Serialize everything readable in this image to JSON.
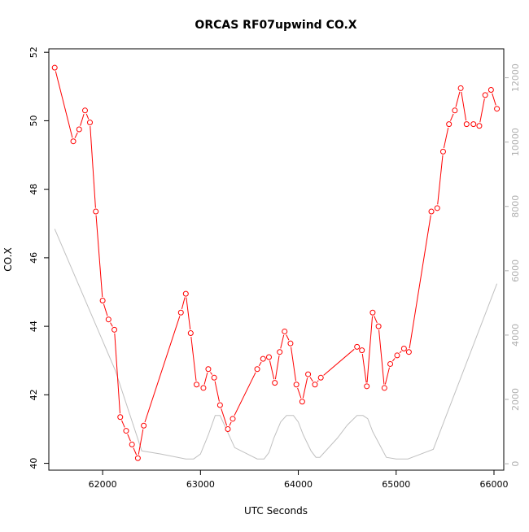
{
  "chart_data": {
    "type": "line",
    "title": "ORCAS RF07upwind CO.X",
    "xlabel": "UTC Seconds",
    "ylabel": "CO.X",
    "xlim": [
      61450,
      66100
    ],
    "ylim": [
      39.8,
      52.1
    ],
    "y2lim": [
      -200,
      12900
    ],
    "x_ticks": [
      62000,
      63000,
      64000,
      65000,
      66000
    ],
    "x_tick_labels": [
      "62000",
      "63000",
      "64000",
      "65000",
      "66000"
    ],
    "y_ticks": [
      40,
      42,
      44,
      46,
      48,
      50,
      52
    ],
    "y_tick_labels": [
      "40",
      "42",
      "44",
      "46",
      "48",
      "50",
      "52"
    ],
    "y2_ticks": [
      0,
      2000,
      4000,
      6000,
      8000,
      10000,
      12000
    ],
    "y2_tick_labels": [
      "0",
      "2000",
      "4000",
      "6000",
      "8000",
      "10000",
      "12000"
    ],
    "grid": false,
    "series": [
      {
        "color": "#ff0000",
        "axis": "left",
        "marker": "open-circle",
        "x": [
          61510,
          61700,
          61760,
          61820,
          61870,
          61930,
          62000,
          62060,
          62120,
          62180,
          62240,
          62300,
          62360,
          62420,
          62800,
          62850,
          62900,
          62960,
          63030,
          63080,
          63140,
          63200,
          63280,
          63330,
          63580,
          63640,
          63700,
          63760,
          63810,
          63860,
          63920,
          63980,
          64040,
          64100,
          64170,
          64230,
          64600,
          64650,
          64700,
          64760,
          64820,
          64880,
          64940,
          65010,
          65080,
          65130,
          65360,
          65420,
          65480,
          65540,
          65600,
          65660,
          65720,
          65790,
          65850,
          65910,
          65970,
          66030
        ],
        "y": [
          51.55,
          49.4,
          49.75,
          50.3,
          49.95,
          47.35,
          44.75,
          44.2,
          43.9,
          41.35,
          40.95,
          40.55,
          40.15,
          41.1,
          44.4,
          44.95,
          43.8,
          42.3,
          42.2,
          42.75,
          42.5,
          41.7,
          41.0,
          41.3,
          42.75,
          43.05,
          43.1,
          42.35,
          43.25,
          43.85,
          43.5,
          42.3,
          41.8,
          42.6,
          42.3,
          42.5,
          43.4,
          43.3,
          42.25,
          44.4,
          44.0,
          42.2,
          42.9,
          43.15,
          43.35,
          43.25,
          47.35,
          47.45,
          49.1,
          49.9,
          50.3,
          50.95,
          49.9,
          49.9,
          49.85,
          50.75,
          50.9,
          50.35
        ]
      },
      {
        "color": "#c0c0c0",
        "axis": "right",
        "marker": "none",
        "x": [
          61510,
          62130,
          62400,
          62600,
          62850,
          62930,
          63000,
          63080,
          63150,
          63200,
          63350,
          63450,
          63580,
          63650,
          63700,
          63750,
          63820,
          63880,
          63950,
          64000,
          64050,
          64130,
          64180,
          64220,
          64400,
          64500,
          64600,
          64660,
          64710,
          64760,
          64830,
          64900,
          65000,
          65100,
          65120,
          65380,
          66030
        ],
        "y": [
          7300,
          2900,
          400,
          300,
          150,
          150,
          300,
          900,
          1500,
          1500,
          500,
          350,
          150,
          150,
          350,
          800,
          1300,
          1500,
          1500,
          1300,
          900,
          400,
          200,
          200,
          800,
          1200,
          1500,
          1500,
          1400,
          1000,
          600,
          200,
          150,
          150,
          150,
          450,
          5600
        ]
      }
    ]
  }
}
